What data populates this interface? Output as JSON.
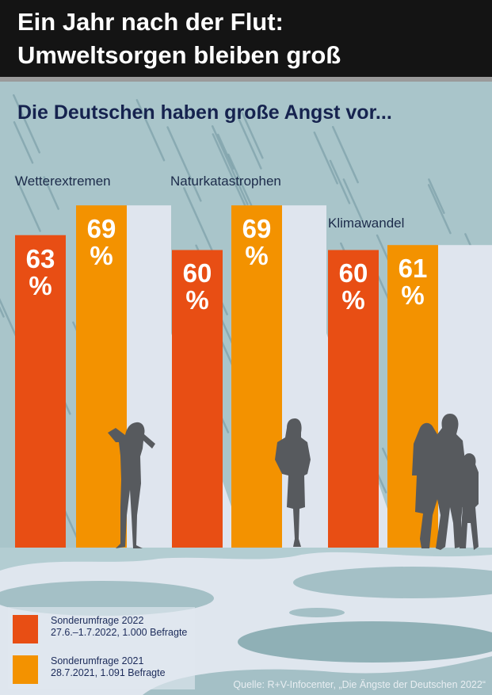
{
  "header": {
    "title_line1": "Ein Jahr nach der Flut:",
    "title_line2": "Umweltsorgen bleiben groß"
  },
  "subtitle": "Die Deutschen haben große Angst vor...",
  "colors": {
    "series_2022": "#e84e14",
    "series_2021": "#f39200",
    "header_bg": "#141414",
    "subtitle_text": "#16234f",
    "background": "#a9c5ca",
    "silhouette": "#575a5e"
  },
  "chart_data": {
    "type": "bar",
    "title": "Die Deutschen haben große Angst vor...",
    "categories": [
      "Wetterextremen",
      "Naturkatastrophen",
      "Klimawandel"
    ],
    "series": [
      {
        "name": "Sonderumfrage 2022",
        "detail": "27.6.–1.7.2022, 1.000 Befragte",
        "values": [
          63,
          60,
          60
        ],
        "labels": [
          "63 %",
          "60 %",
          "60 %"
        ]
      },
      {
        "name": "Sonderumfrage 2021",
        "detail": "28.7.2021, 1.091 Befragte",
        "values": [
          69,
          69,
          61
        ],
        "labels": [
          "69 %",
          "69 %",
          "61 %"
        ]
      }
    ],
    "unit": "%",
    "xlabel": "",
    "ylabel": "",
    "grid": false,
    "legend_position": "bottom-left"
  },
  "legend": {
    "items": [
      {
        "line1": "Sonderumfrage 2022",
        "line2": "27.6.–1.7.2022, 1.000 Befragte"
      },
      {
        "line1": "Sonderumfrage 2021",
        "line2": "28.7.2021, 1.091 Befragte"
      }
    ]
  },
  "source": "Quelle: R+V-Infocenter, „Die Ängste der Deutschen 2022“",
  "illustrations": [
    "person-silhouette-hands-on-head",
    "woman-silhouette",
    "family-silhouette"
  ]
}
